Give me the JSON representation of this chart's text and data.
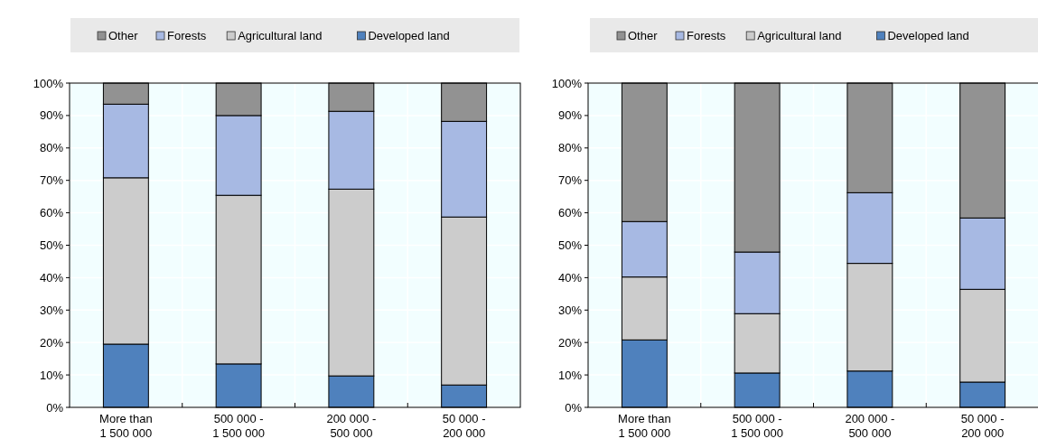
{
  "chart_data": [
    {
      "type": "bar",
      "stacked": true,
      "categories": [
        "More than\n1 500 000",
        "500 000 -\n1 500 000",
        "200 000 -\n500 000",
        "50 000 -\n200 000"
      ],
      "series": [
        {
          "name": "Developed land",
          "color": "#4f81bd",
          "values": [
            19.5,
            13.4,
            9.7,
            6.9
          ]
        },
        {
          "name": "Agricultural land",
          "color": "#cccccc",
          "values": [
            51.3,
            52.0,
            57.6,
            51.8
          ]
        },
        {
          "name": "Forests",
          "color": "#a7b9e3",
          "values": [
            22.7,
            24.6,
            24.0,
            29.5
          ]
        },
        {
          "name": "Other",
          "color": "#929292",
          "values": [
            6.5,
            10.0,
            8.7,
            11.8
          ]
        }
      ],
      "ylim": [
        0,
        100
      ],
      "yticks": [
        {
          "value": 0,
          "label": "0%"
        },
        {
          "value": 10,
          "label": "10%"
        },
        {
          "value": 20,
          "label": "20%"
        },
        {
          "value": 30,
          "label": "30%"
        },
        {
          "value": 40,
          "label": "40%"
        },
        {
          "value": 50,
          "label": "50%"
        },
        {
          "value": 60,
          "label": "60%"
        },
        {
          "value": 70,
          "label": "70%"
        },
        {
          "value": 80,
          "label": "80%"
        },
        {
          "value": 90,
          "label": "90%"
        },
        {
          "value": 100,
          "label": "100%"
        }
      ],
      "grid": true,
      "legend": "top"
    },
    {
      "type": "bar",
      "stacked": true,
      "categories": [
        "More than\n1 500 000",
        "500 000 -\n1 500 000",
        "200 000 -\n500 000",
        "50 000 -\n200 000"
      ],
      "series": [
        {
          "name": "Developed land",
          "color": "#4f81bd",
          "values": [
            20.8,
            10.6,
            11.2,
            7.8
          ]
        },
        {
          "name": "Agricultural land",
          "color": "#cccccc",
          "values": [
            19.4,
            18.3,
            33.2,
            28.6
          ]
        },
        {
          "name": "Forests",
          "color": "#a7b9e3",
          "values": [
            17.1,
            19.0,
            21.8,
            22.0
          ]
        },
        {
          "name": "Other",
          "color": "#929292",
          "values": [
            42.7,
            52.1,
            33.8,
            41.6
          ]
        }
      ],
      "ylim": [
        0,
        100
      ],
      "yticks": [
        {
          "value": 0,
          "label": "0%"
        },
        {
          "value": 10,
          "label": "10%"
        },
        {
          "value": 20,
          "label": "20%"
        },
        {
          "value": 30,
          "label": "30%"
        },
        {
          "value": 40,
          "label": "40%"
        },
        {
          "value": 50,
          "label": "50%"
        },
        {
          "value": 60,
          "label": "60%"
        },
        {
          "value": 70,
          "label": "70%"
        },
        {
          "value": 80,
          "label": "80%"
        },
        {
          "value": 90,
          "label": "90%"
        },
        {
          "value": 100,
          "label": "100%"
        }
      ],
      "grid": true,
      "legend": "top"
    }
  ]
}
